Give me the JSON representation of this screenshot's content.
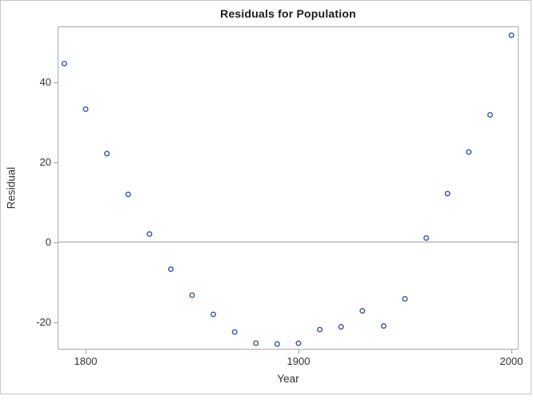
{
  "figure": {
    "title": "Residuals for Population",
    "x_axis_label": "Year",
    "y_axis_label": "Residual"
  },
  "chart_data": {
    "type": "scatter",
    "title": "Residuals for Population",
    "xlabel": "Year",
    "ylabel": "Residual",
    "x": [
      1790,
      1800,
      1810,
      1820,
      1830,
      1840,
      1850,
      1860,
      1870,
      1880,
      1890,
      1900,
      1910,
      1920,
      1930,
      1940,
      1950,
      1960,
      1970,
      1980,
      1990,
      2000
    ],
    "y": [
      44.6,
      33.2,
      22.1,
      11.9,
      2.0,
      -6.8,
      -13.3,
      -18.1,
      -22.5,
      -25.3,
      -25.5,
      -25.3,
      -21.9,
      -21.2,
      -17.2,
      -21.0,
      -14.2,
      1.0,
      12.1,
      22.5,
      31.8,
      51.7
    ],
    "xlim": [
      1787.2,
      2003.0
    ],
    "ylim": [
      -26.7,
      53.7
    ],
    "x_ticks": [
      1800,
      1900,
      2000
    ],
    "y_ticks": [
      -20,
      0,
      20,
      40
    ],
    "reference_line_y": 0,
    "grid": false,
    "legend": "none",
    "marker": "open-circle",
    "colors": {
      "marker": "#3d5da7",
      "reference_line": "#aaadb2",
      "axis_border": "#a8abaf",
      "tick": "#9b9fa4",
      "tick_label": "#333333",
      "title_text": "#1a1a1a"
    }
  }
}
